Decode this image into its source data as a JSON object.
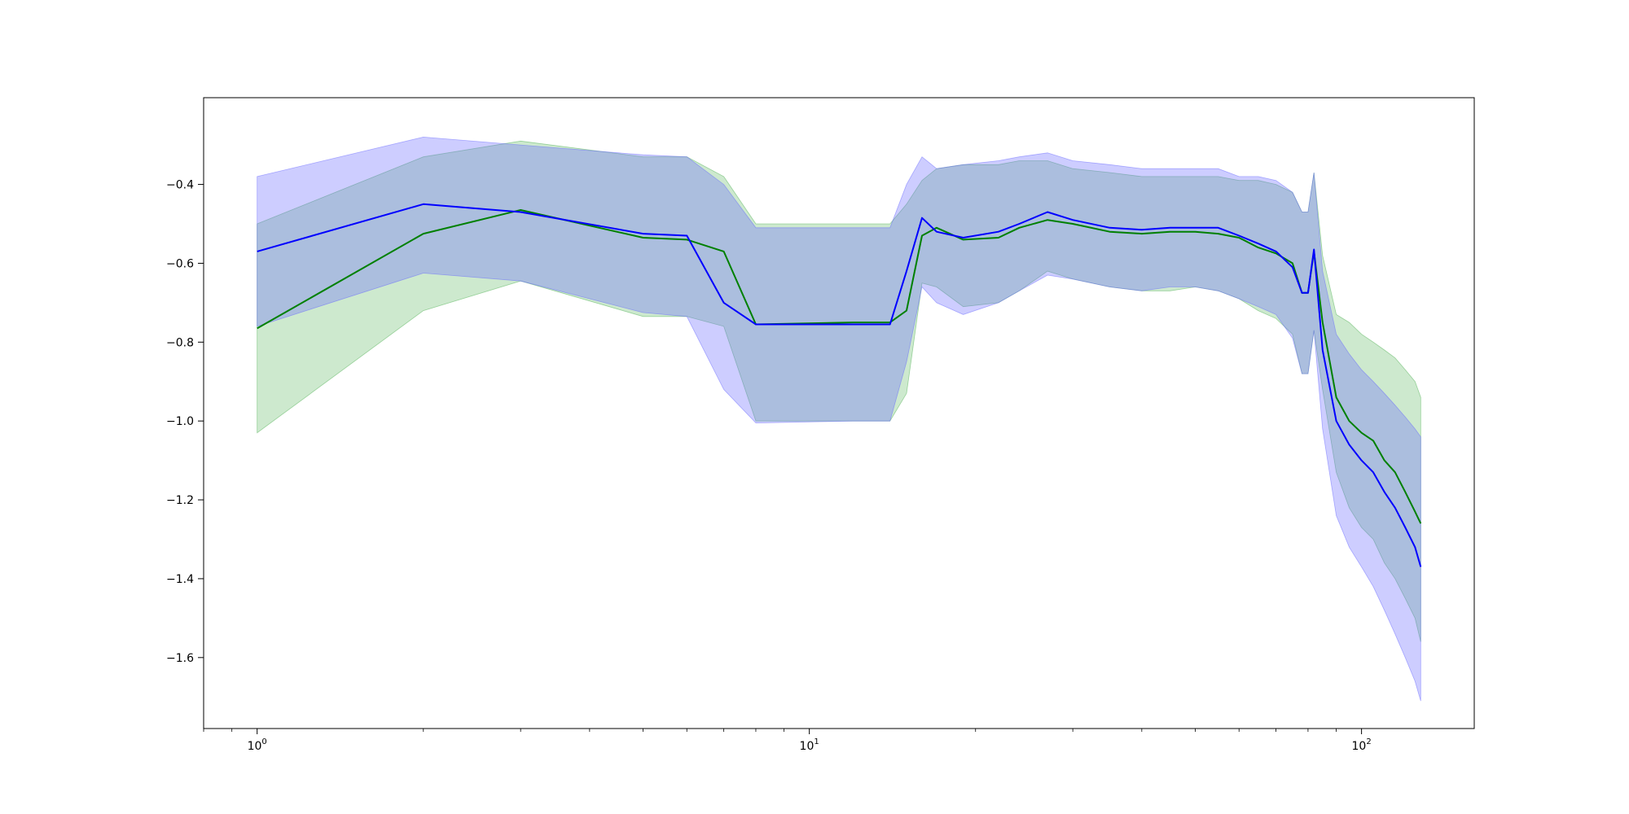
{
  "chart_data": {
    "type": "line",
    "title": "",
    "xlabel": "",
    "ylabel": "",
    "xscale": "log",
    "xlim": [
      0.8,
      160
    ],
    "ylim": [
      -1.78,
      -0.18
    ],
    "grid": false,
    "x_ticks": [
      {
        "value": 1,
        "base": "10",
        "exp": "0"
      },
      {
        "value": 10,
        "base": "10",
        "exp": "1"
      },
      {
        "value": 100,
        "base": "10",
        "exp": "2"
      }
    ],
    "y_ticks": [
      {
        "value": -0.4,
        "label": "−0.4"
      },
      {
        "value": -0.6,
        "label": "−0.6"
      },
      {
        "value": -0.8,
        "label": "−0.8"
      },
      {
        "value": -1.0,
        "label": "−1.0"
      },
      {
        "value": -1.2,
        "label": "−1.2"
      },
      {
        "value": -1.4,
        "label": "−1.4"
      },
      {
        "value": -1.6,
        "label": "−1.6"
      }
    ],
    "series": [
      {
        "color": "#008000",
        "band_color": "#4caf50",
        "x": [
          1,
          2,
          3,
          5,
          6,
          7,
          8,
          12,
          14,
          15,
          16,
          17,
          19,
          22,
          24,
          27,
          30,
          35,
          40,
          45,
          50,
          55,
          60,
          65,
          70,
          75,
          78,
          80,
          82,
          85,
          90,
          95,
          100,
          105,
          110,
          115,
          120,
          125,
          128
        ],
        "y": [
          -0.765,
          -0.525,
          -0.465,
          -0.535,
          -0.54,
          -0.57,
          -0.755,
          -0.75,
          -0.75,
          -0.72,
          -0.53,
          -0.51,
          -0.54,
          -0.535,
          -0.51,
          -0.49,
          -0.5,
          -0.52,
          -0.525,
          -0.52,
          -0.52,
          -0.525,
          -0.535,
          -0.56,
          -0.575,
          -0.6,
          -0.675,
          -0.675,
          -0.57,
          -0.75,
          -0.94,
          -1.0,
          -1.03,
          -1.05,
          -1.1,
          -1.13,
          -1.18,
          -1.23,
          -1.26
        ],
        "upper": [
          -0.5,
          -0.33,
          -0.29,
          -0.33,
          -0.33,
          -0.38,
          -0.5,
          -0.5,
          -0.5,
          -0.45,
          -0.39,
          -0.36,
          -0.35,
          -0.35,
          -0.34,
          -0.34,
          -0.36,
          -0.37,
          -0.38,
          -0.38,
          -0.38,
          -0.38,
          -0.39,
          -0.39,
          -0.4,
          -0.42,
          -0.47,
          -0.47,
          -0.37,
          -0.58,
          -0.73,
          -0.75,
          -0.78,
          -0.8,
          -0.82,
          -0.84,
          -0.87,
          -0.9,
          -0.94
        ],
        "lower": [
          -1.03,
          -0.72,
          -0.645,
          -0.735,
          -0.735,
          -0.76,
          -1.0,
          -1.0,
          -1.0,
          -0.93,
          -0.65,
          -0.66,
          -0.71,
          -0.7,
          -0.67,
          -0.62,
          -0.64,
          -0.66,
          -0.67,
          -0.67,
          -0.66,
          -0.67,
          -0.69,
          -0.72,
          -0.74,
          -0.78,
          -0.88,
          -0.88,
          -0.77,
          -0.92,
          -1.13,
          -1.22,
          -1.27,
          -1.3,
          -1.36,
          -1.4,
          -1.45,
          -1.5,
          -1.56
        ]
      },
      {
        "color": "#0000ff",
        "band_color": "#6666ff",
        "x": [
          1,
          2,
          3,
          5,
          6,
          7,
          8,
          12,
          14,
          15,
          16,
          17,
          19,
          22,
          24,
          27,
          30,
          35,
          40,
          45,
          50,
          55,
          60,
          65,
          70,
          75,
          78,
          80,
          82,
          85,
          90,
          95,
          100,
          105,
          110,
          115,
          120,
          125,
          128
        ],
        "y": [
          -0.57,
          -0.45,
          -0.47,
          -0.525,
          -0.53,
          -0.7,
          -0.755,
          -0.755,
          -0.755,
          -0.62,
          -0.485,
          -0.52,
          -0.535,
          -0.52,
          -0.5,
          -0.47,
          -0.49,
          -0.51,
          -0.515,
          -0.51,
          -0.51,
          -0.51,
          -0.53,
          -0.55,
          -0.57,
          -0.61,
          -0.675,
          -0.675,
          -0.565,
          -0.82,
          -1.0,
          -1.06,
          -1.1,
          -1.13,
          -1.18,
          -1.22,
          -1.27,
          -1.32,
          -1.37
        ],
        "upper": [
          -0.38,
          -0.28,
          -0.3,
          -0.325,
          -0.33,
          -0.4,
          -0.51,
          -0.51,
          -0.51,
          -0.4,
          -0.33,
          -0.36,
          -0.35,
          -0.34,
          -0.33,
          -0.32,
          -0.34,
          -0.35,
          -0.36,
          -0.36,
          -0.36,
          -0.36,
          -0.38,
          -0.38,
          -0.39,
          -0.42,
          -0.47,
          -0.47,
          -0.37,
          -0.62,
          -0.78,
          -0.83,
          -0.87,
          -0.9,
          -0.93,
          -0.96,
          -0.99,
          -1.02,
          -1.04
        ],
        "lower": [
          -0.76,
          -0.625,
          -0.645,
          -0.725,
          -0.735,
          -0.92,
          -1.005,
          -1.0,
          -1.0,
          -0.85,
          -0.66,
          -0.7,
          -0.73,
          -0.7,
          -0.67,
          -0.63,
          -0.64,
          -0.66,
          -0.67,
          -0.66,
          -0.66,
          -0.67,
          -0.69,
          -0.71,
          -0.73,
          -0.79,
          -0.88,
          -0.88,
          -0.77,
          -1.02,
          -1.24,
          -1.32,
          -1.37,
          -1.42,
          -1.48,
          -1.54,
          -1.6,
          -1.66,
          -1.71
        ]
      }
    ]
  }
}
